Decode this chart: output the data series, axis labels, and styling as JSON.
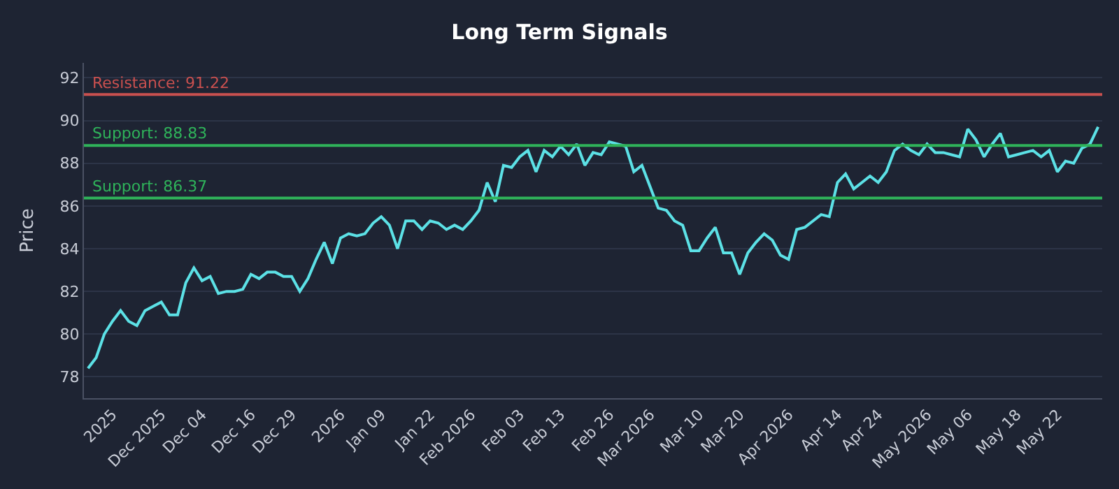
{
  "chart_data": {
    "type": "line",
    "title": "Long Term Signals",
    "ylabel": "Price",
    "categories": [
      null,
      null,
      null,
      "2025",
      null,
      null,
      null,
      null,
      null,
      "Dec 2025",
      null,
      null,
      null,
      null,
      "Dec 04",
      null,
      null,
      null,
      null,
      null,
      "Dec 16",
      null,
      null,
      null,
      null,
      "Dec 29",
      null,
      null,
      null,
      null,
      null,
      "2026",
      null,
      null,
      null,
      null,
      "Jan 09",
      null,
      null,
      null,
      null,
      null,
      "Jan 22",
      null,
      null,
      null,
      null,
      "Feb 2026",
      null,
      null,
      null,
      null,
      null,
      "Feb 03",
      null,
      null,
      null,
      null,
      "Feb 13",
      null,
      null,
      null,
      null,
      null,
      "Feb 26",
      null,
      null,
      null,
      null,
      "Mar 2026",
      null,
      null,
      null,
      null,
      null,
      "Mar 10",
      null,
      null,
      null,
      null,
      "Mar 20",
      null,
      null,
      null,
      null,
      null,
      "Apr 2026",
      null,
      null,
      null,
      null,
      null,
      "Apr 14",
      null,
      null,
      null,
      null,
      "Apr 24",
      null,
      null,
      null,
      null,
      null,
      "May 2026",
      null,
      null,
      null,
      null,
      "May 06",
      null,
      null,
      null,
      null,
      null,
      "May 18",
      null,
      null,
      null,
      null,
      "May 22",
      null,
      null,
      null,
      null,
      null
    ],
    "series": [
      {
        "color": "#5ce1e6",
        "values": [
          78.4,
          78.9,
          80.0,
          80.6,
          81.1,
          80.6,
          80.4,
          81.1,
          81.3,
          81.5,
          80.9,
          80.9,
          82.4,
          83.1,
          82.5,
          82.7,
          81.9,
          82.0,
          82.0,
          82.1,
          82.8,
          82.6,
          82.9,
          82.9,
          82.7,
          82.7,
          82.0,
          82.6,
          83.5,
          84.3,
          83.3,
          84.5,
          84.7,
          84.6,
          84.7,
          85.2,
          85.5,
          85.1,
          84.0,
          85.3,
          85.3,
          84.9,
          85.3,
          85.2,
          84.9,
          85.1,
          84.9,
          85.3,
          85.8,
          87.1,
          86.2,
          87.9,
          87.8,
          88.3,
          88.6,
          87.6,
          88.6,
          88.3,
          88.8,
          88.4,
          88.9,
          87.9,
          88.5,
          88.4,
          89.0,
          88.9,
          88.8,
          87.6,
          87.9,
          86.9,
          85.9,
          85.8,
          85.3,
          85.1,
          83.9,
          83.9,
          84.5,
          85.0,
          83.8,
          83.8,
          82.8,
          83.8,
          84.3,
          84.7,
          84.4,
          83.7,
          83.5,
          84.9,
          85.0,
          85.3,
          85.6,
          85.5,
          87.1,
          87.5,
          86.8,
          87.1,
          87.4,
          87.1,
          87.6,
          88.6,
          88.9,
          88.6,
          88.4,
          88.9,
          88.5,
          88.5,
          88.4,
          88.3,
          89.6,
          89.1,
          88.3,
          88.9,
          89.4,
          88.3,
          88.4,
          88.5,
          88.6,
          88.3,
          88.6,
          87.6,
          88.1,
          88.0,
          88.7,
          88.9,
          89.7
        ]
      }
    ],
    "ylim": [
      77,
      92.7
    ],
    "yticks": [
      78,
      80,
      82,
      84,
      86,
      88,
      90,
      92
    ],
    "grid": "y",
    "legend": false,
    "line_style": "solid",
    "marker": "none",
    "ref_lines": [
      {
        "axis": "y",
        "value": 91.22,
        "label": "Resistance: 91.22",
        "color": "#c9504f"
      },
      {
        "axis": "y",
        "value": 88.83,
        "label": "Support: 88.83",
        "color": "#2fb35a"
      },
      {
        "axis": "y",
        "value": 86.37,
        "label": "Support: 86.37",
        "color": "#2fb35a"
      }
    ]
  }
}
